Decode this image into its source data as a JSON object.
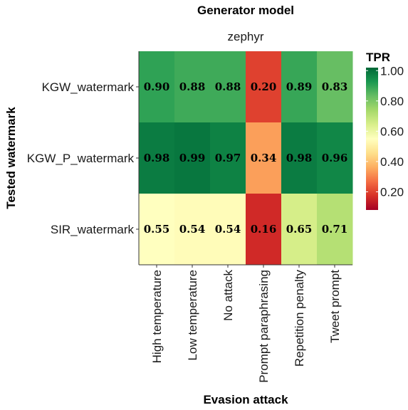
{
  "chart_data": {
    "type": "heatmap",
    "title": "Generator model",
    "facet_label": "zephyr",
    "xlabel": "Evasion attack",
    "ylabel": "Tested watermark",
    "x_categories": [
      "High temperature",
      "Low temperature",
      "No attack",
      "Prompt paraphrasing",
      "Repetition penalty",
      "Tweet prompt"
    ],
    "y_categories": [
      "KGW_watermark",
      "KGW_P_watermark",
      "SIR_watermark"
    ],
    "values": [
      [
        0.9,
        0.88,
        0.88,
        0.2,
        0.89,
        0.83
      ],
      [
        0.98,
        0.99,
        0.97,
        0.34,
        0.98,
        0.96
      ],
      [
        0.55,
        0.54,
        0.54,
        0.16,
        0.65,
        0.71
      ]
    ],
    "cell_labels": [
      [
        "0.90",
        "0.88",
        "0.88",
        "0.20",
        "0.89",
        "0.83"
      ],
      [
        "0.98",
        "0.99",
        "0.97",
        "0.34",
        "0.98",
        "0.96"
      ],
      [
        "0.55",
        "0.54",
        "0.54",
        "0.16",
        "0.65",
        "0.71"
      ]
    ],
    "legend": {
      "title": "TPR",
      "position": "right",
      "ticks": [
        "1.00",
        "0.80",
        "0.60",
        "0.40",
        "0.20"
      ],
      "tick_values": [
        1.0,
        0.8,
        0.6,
        0.4,
        0.2
      ],
      "range": [
        0.08,
        1.02
      ],
      "colorscale": "RdYlGn",
      "colors": [
        "#a50026",
        "#d73027",
        "#f46d43",
        "#fdae61",
        "#fee08b",
        "#ffffbf",
        "#d9ef8b",
        "#a6d96a",
        "#66bd63",
        "#1a9850",
        "#006837"
      ]
    },
    "grid": false
  }
}
